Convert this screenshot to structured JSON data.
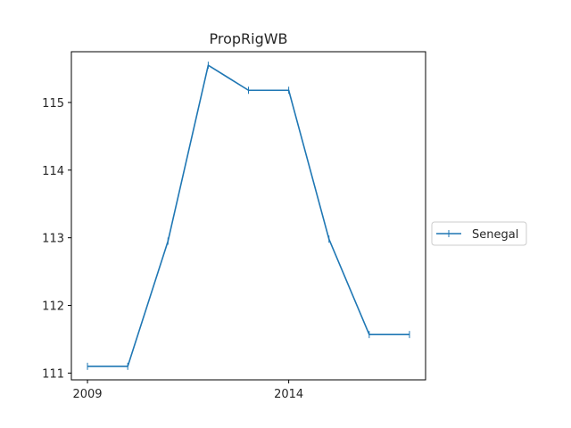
{
  "chart_data": {
    "type": "line",
    "title": "PropRigWB",
    "xlabel": "",
    "ylabel": "",
    "x": [
      2009,
      2010,
      2011,
      2012,
      2013,
      2014,
      2015,
      2016,
      2017
    ],
    "x_ticks": [
      2009,
      2014
    ],
    "x_tick_labels": [
      "2009",
      "2014"
    ],
    "xlim": [
      2008.6,
      2017.4
    ],
    "ylim": [
      110.9,
      115.75
    ],
    "y_ticks": [
      111,
      112,
      113,
      114,
      115
    ],
    "y_tick_labels": [
      "111",
      "112",
      "113",
      "114",
      "115"
    ],
    "series": [
      {
        "name": "Senegal",
        "color": "#1f77b4",
        "marker": "vertical-bar",
        "values": [
          111.1,
          111.1,
          112.95,
          115.55,
          115.18,
          115.18,
          112.98,
          111.57,
          111.57
        ]
      }
    ],
    "grid": false,
    "legend_position": "right-outside"
  }
}
